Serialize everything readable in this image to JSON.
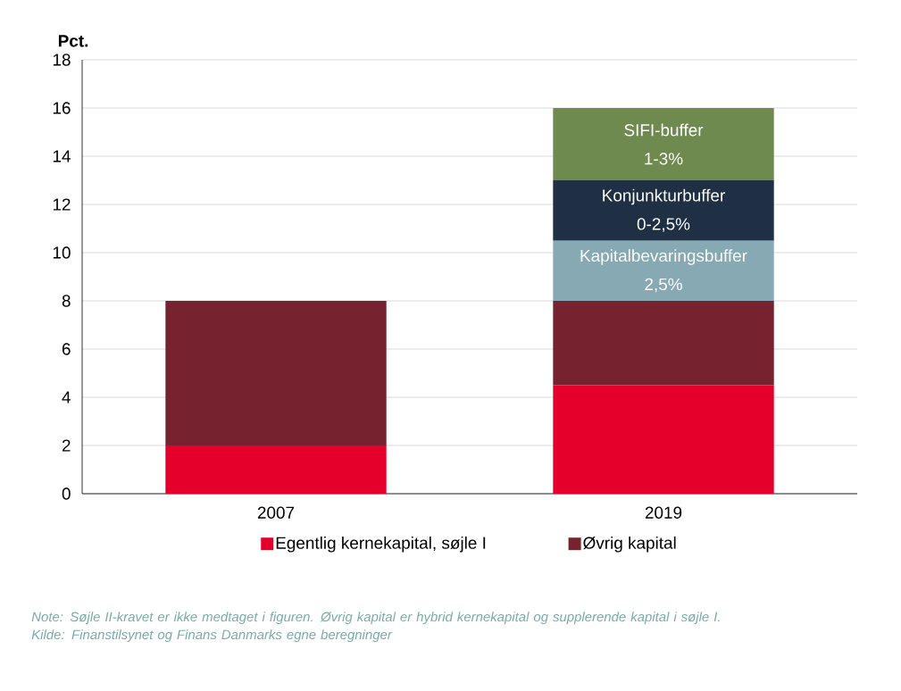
{
  "chart_data": {
    "type": "bar",
    "stacked": true,
    "ylabel": "Pct.",
    "categories": [
      "2007",
      "2019"
    ],
    "series": [
      {
        "name": "Egentlig kernekapital, søjle I",
        "color": "#e4002b",
        "values": [
          2,
          4.5
        ]
      },
      {
        "name": "Øvrig kapital",
        "color": "#76232f",
        "values": [
          6,
          3.5
        ]
      },
      {
        "name": "Kapitalbevaringsbuffer 2,5%",
        "color": "#86a9b4",
        "values": [
          null,
          2.5
        ]
      },
      {
        "name": "Konjunkturbuffer 0-2,5%",
        "color": "#1f3045",
        "values": [
          null,
          2.5
        ]
      },
      {
        "name": "SIFI-buffer 1-3%",
        "color": "#6f8a4e",
        "values": [
          null,
          3
        ]
      }
    ],
    "ylim": [
      0,
      18
    ],
    "yticks": [
      0,
      2,
      4,
      6,
      8,
      10,
      12,
      14,
      16,
      18
    ],
    "grid": "y",
    "legend": "bottom",
    "annotations": [
      "Note: Søjle II-kravet er ikke medtaget i figuren. Øvrig kapital er hybrid kernekapital og supplerende kapital i søjle I.",
      "Kilde: Finanstilsynet og Finans Danmarks egne beregninger"
    ]
  }
}
